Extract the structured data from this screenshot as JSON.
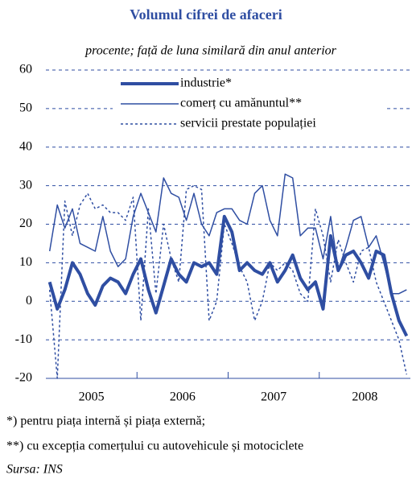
{
  "chart_data": {
    "type": "line",
    "title": "Volumul cifrei de afaceri",
    "subtitle": "procente; față de luna similară din anul anterior",
    "categories": [
      null,
      null,
      null,
      null,
      null,
      "2005",
      null,
      null,
      null,
      null,
      null,
      null,
      null,
      null,
      null,
      null,
      null,
      "2006",
      null,
      null,
      null,
      null,
      null,
      null,
      null,
      null,
      null,
      null,
      null,
      "2007",
      null,
      null,
      null,
      null,
      null,
      null,
      null,
      null,
      null,
      null,
      null,
      "2008",
      null,
      null,
      null,
      null,
      null,
      null
    ],
    "series": [
      {
        "name": "industrie*",
        "color": "#2f4ea2",
        "line_width": 4,
        "line_style": "solid",
        "values": [
          5,
          -2,
          3,
          10,
          7,
          2,
          -1,
          4,
          6,
          5,
          2,
          7,
          11,
          3,
          -3,
          4,
          11,
          7,
          5,
          10,
          9,
          10,
          7,
          22,
          18,
          8,
          10,
          8,
          7,
          10,
          5,
          8,
          12,
          6,
          3,
          5,
          -2,
          17,
          8,
          12,
          13,
          10,
          6,
          13,
          12,
          2,
          -5,
          -9
        ]
      },
      {
        "name": "comerț cu amănuntul**",
        "color": "#2f4ea2",
        "line_width": 1.5,
        "line_style": "solid",
        "values": [
          13,
          25,
          19,
          24,
          15,
          14,
          13,
          22,
          13,
          9,
          11,
          22,
          28,
          23,
          18,
          32,
          28,
          27,
          21,
          28,
          20,
          17,
          23,
          24,
          24,
          21,
          20,
          28,
          30,
          21,
          17,
          33,
          32,
          17,
          19,
          19,
          11,
          22,
          8,
          14,
          21,
          22,
          14,
          17,
          10,
          2,
          2,
          3
        ]
      },
      {
        "name": "servicii prestate populației",
        "color": "#2f4ea2",
        "line_width": 1.5,
        "line_style": "dotted",
        "values": [
          3,
          -20,
          26,
          17,
          25,
          28,
          24,
          25,
          23,
          23,
          21,
          27,
          -5,
          24,
          2,
          20,
          11,
          5,
          29,
          30,
          29,
          -5,
          0,
          20,
          15,
          9,
          5,
          -5,
          0,
          10,
          8,
          10,
          8,
          2,
          0,
          24,
          17,
          5,
          16,
          10,
          5,
          13,
          14,
          5,
          0,
          -5,
          -10,
          -19
        ]
      }
    ],
    "ylim": [
      -20,
      60
    ],
    "yticks": [
      -20,
      -10,
      0,
      10,
      20,
      30,
      40,
      50,
      60
    ],
    "grid": true,
    "footnotes": [
      "*) pentru piața internă și piața externă;",
      "**) cu excepția comerțului cu autovehicule și motociclete"
    ],
    "source": "Sursa: INS"
  }
}
